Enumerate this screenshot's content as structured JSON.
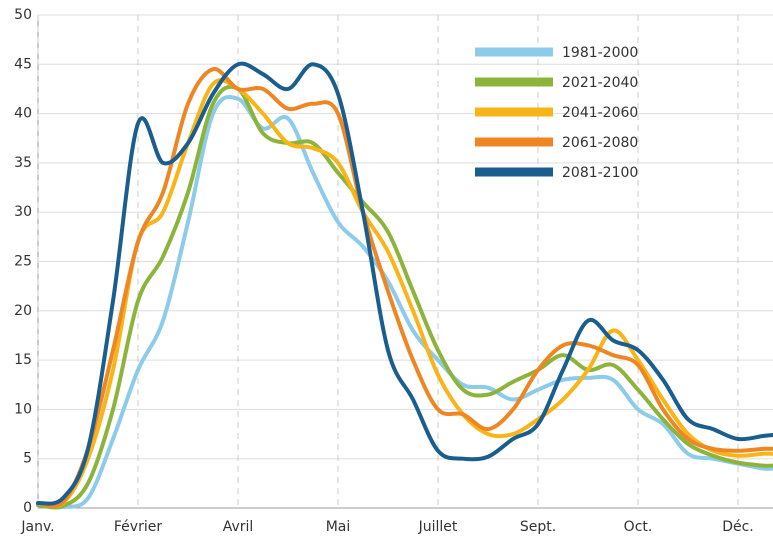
{
  "chart_data": {
    "type": "line",
    "x": [
      0,
      0.25,
      0.5,
      0.75,
      1,
      1.25,
      1.5,
      1.75,
      2,
      2.25,
      2.5,
      2.75,
      3,
      3.25,
      3.5,
      3.75,
      4,
      4.25,
      4.5,
      4.75,
      5,
      5.25,
      5.5,
      5.75,
      6,
      6.25,
      6.5,
      6.75,
      7,
      7.25,
      7.35
    ],
    "xlim": [
      0,
      7.35
    ],
    "xticks": [
      {
        "value": 0,
        "label": "Janv."
      },
      {
        "value": 1,
        "label": "Février"
      },
      {
        "value": 2,
        "label": "Avril"
      },
      {
        "value": 3,
        "label": "Mai"
      },
      {
        "value": 4,
        "label": "Juillet"
      },
      {
        "value": 5,
        "label": "Sept."
      },
      {
        "value": 6,
        "label": "Oct."
      },
      {
        "value": 7,
        "label": "Déc."
      }
    ],
    "ylim": [
      0,
      50
    ],
    "yticks": [
      0,
      5,
      10,
      15,
      20,
      25,
      30,
      35,
      40,
      45,
      50
    ],
    "grid": true,
    "legend": "top-right",
    "series": [
      {
        "name": "1981-2000",
        "color": "#8ccbea",
        "values": [
          0.3,
          0.1,
          1,
          7,
          14,
          19,
          29,
          40,
          41.5,
          38.5,
          39.5,
          34,
          29,
          26.5,
          23,
          18,
          15,
          12.5,
          12.2,
          11,
          12,
          13,
          13.2,
          13,
          10,
          8.5,
          5.5,
          5,
          4.5,
          4,
          4
        ]
      },
      {
        "name": "2021-2040",
        "color": "#8db43a",
        "values": [
          0.3,
          0.2,
          2.5,
          10,
          21,
          25.5,
          32,
          41,
          42.5,
          38,
          37,
          37,
          34,
          31,
          28,
          22,
          16,
          12,
          11.5,
          12.8,
          14,
          15.5,
          14,
          14.5,
          12,
          9,
          6.5,
          5.3,
          4.6,
          4.3,
          4.3
        ]
      },
      {
        "name": "2041-2060",
        "color": "#f9b418",
        "values": [
          0.5,
          0.5,
          5,
          14,
          27,
          30,
          37,
          43,
          42.5,
          40,
          37,
          36.5,
          35,
          30,
          26,
          20,
          13.5,
          9.5,
          7.5,
          7.5,
          9,
          11,
          14,
          18,
          15,
          11,
          7.5,
          5.8,
          5.3,
          5.5,
          5.5
        ]
      },
      {
        "name": "2061-2080",
        "color": "#ee8723",
        "values": [
          0.5,
          0.6,
          6,
          16,
          27,
          32,
          41,
          44.5,
          42.5,
          42.5,
          40.5,
          41,
          40,
          30,
          22,
          15,
          10,
          9.5,
          8,
          10,
          14,
          16.5,
          16.5,
          15.5,
          14.5,
          10,
          7,
          6,
          5.8,
          6,
          6
        ]
      },
      {
        "name": "2081-2100",
        "color": "#1a5e8f",
        "values": [
          0.5,
          1,
          6,
          21,
          39,
          35,
          37,
          42,
          45,
          44,
          42.5,
          45,
          42,
          30,
          16,
          11,
          5.8,
          5,
          5.2,
          7,
          8.5,
          14,
          19,
          17,
          16,
          13,
          9,
          8,
          7,
          7.3,
          7.4
        ]
      }
    ]
  }
}
